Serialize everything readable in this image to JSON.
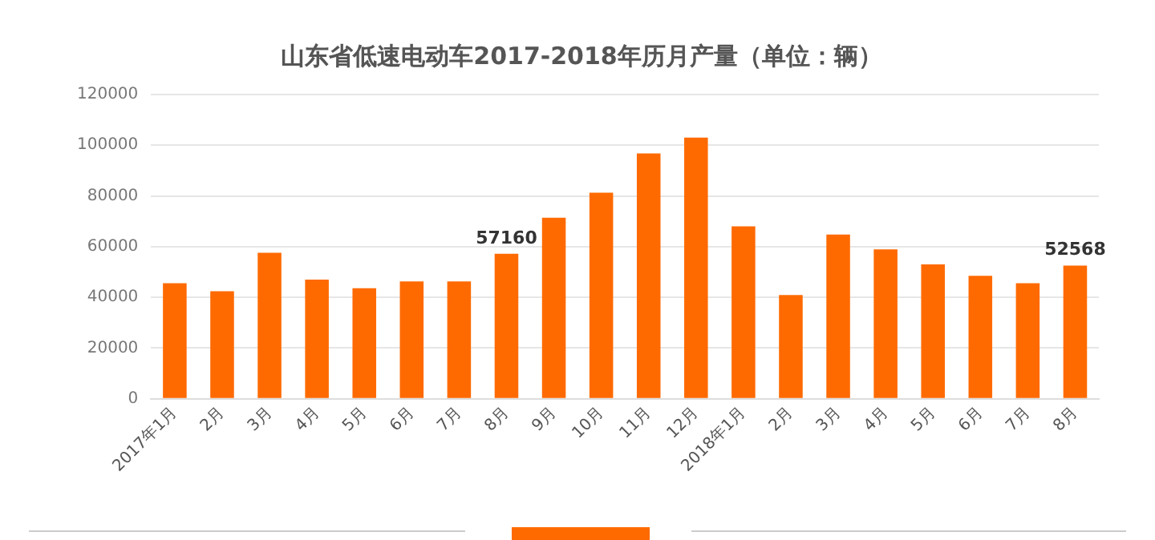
{
  "chart_data": {
    "type": "bar",
    "title": "山东省低速电动车2017-2018年历月产量（单位：辆）",
    "categories": [
      "2017年1月",
      "2月",
      "3月",
      "4月",
      "5月",
      "6月",
      "7月",
      "8月",
      "9月",
      "10月",
      "11月",
      "12月",
      "2018年1月",
      "2月",
      "3月",
      "4月",
      "5月",
      "6月",
      "7月",
      "8月"
    ],
    "values": [
      45600,
      42400,
      57600,
      47000,
      43600,
      46300,
      46300,
      57160,
      71400,
      81300,
      96800,
      103000,
      68000,
      40900,
      64800,
      58900,
      53000,
      48500,
      45600,
      52568
    ],
    "value_labels": [
      null,
      null,
      null,
      null,
      null,
      null,
      null,
      "57160",
      null,
      null,
      null,
      null,
      null,
      null,
      null,
      null,
      null,
      null,
      null,
      "52568"
    ],
    "color": "#ff6a00",
    "ylim": [
      0,
      120000
    ],
    "yticks": [
      0,
      20000,
      40000,
      60000,
      80000,
      100000,
      120000
    ],
    "grid": "y"
  }
}
